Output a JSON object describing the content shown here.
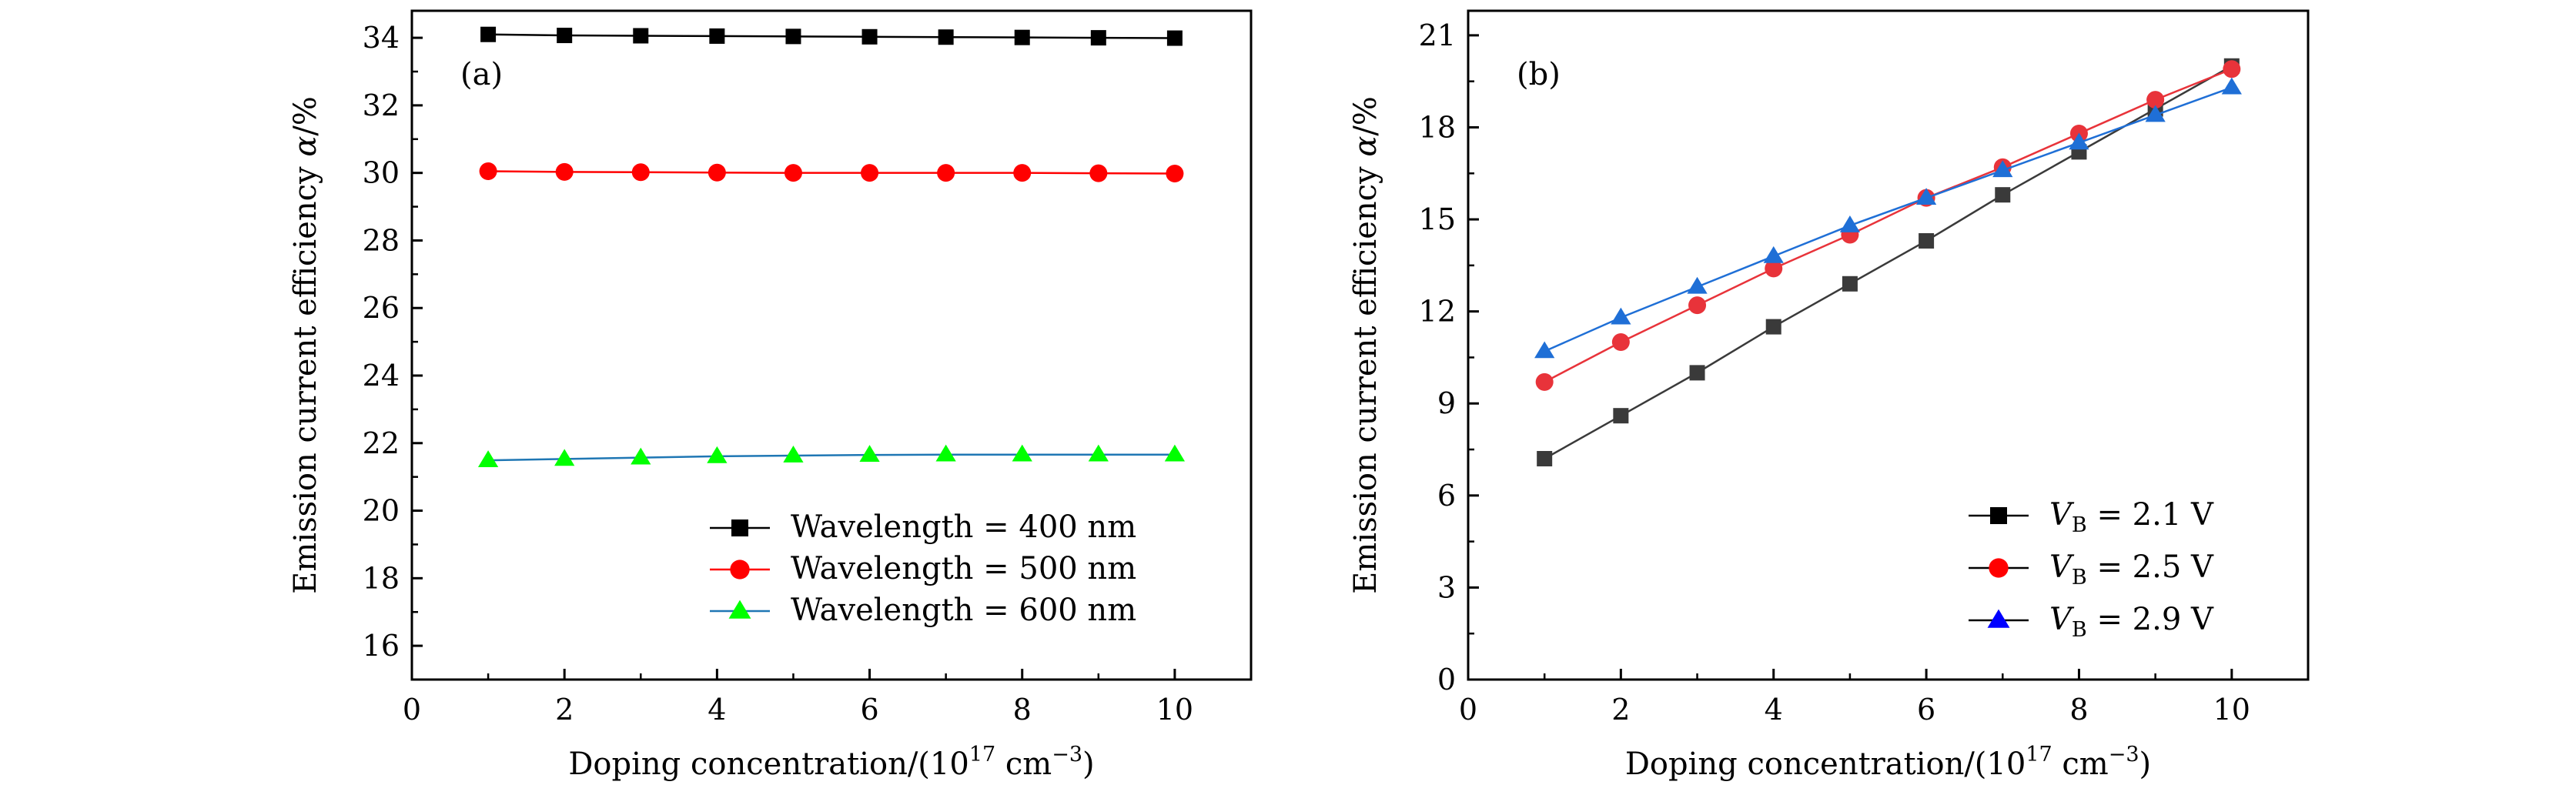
{
  "chart_data": [
    {
      "type": "line",
      "panel_label": "(a)",
      "xlabel": {
        "prefix": "Doping concentration/(10",
        "exp1": "17",
        "mid": " cm",
        "exp2": "−3",
        "suffix": ")"
      },
      "ylabel": {
        "prefix": "Emission current efficiency ",
        "var": "α",
        "suffix": "/%"
      },
      "xlim": [
        0,
        11
      ],
      "ylim": [
        15,
        34.8
      ],
      "xticks": [
        0,
        2,
        4,
        6,
        8,
        10
      ],
      "yticks": [
        16,
        18,
        20,
        22,
        24,
        26,
        28,
        30,
        32,
        34
      ],
      "x": [
        1,
        2,
        3,
        4,
        5,
        6,
        7,
        8,
        9,
        10
      ],
      "legend_position": "bottom-right",
      "series": [
        {
          "name": "Wavelength = 400 nm",
          "legend_parts": [
            "Wavelength",
            " = 400 nm"
          ],
          "color": "#000000",
          "line_color": "#000000",
          "marker": "square",
          "values": [
            34.1,
            34.07,
            34.06,
            34.05,
            34.04,
            34.03,
            34.02,
            34.01,
            34.0,
            33.99
          ]
        },
        {
          "name": "Wavelength = 500 nm",
          "legend_parts": [
            "Wavelength",
            " = 500 nm"
          ],
          "color": "#ff0000",
          "line_color": "#ff0000",
          "marker": "circle",
          "values": [
            30.05,
            30.03,
            30.02,
            30.01,
            30.0,
            30.0,
            30.0,
            30.0,
            29.99,
            29.98
          ]
        },
        {
          "name": "Wavelength = 600 nm",
          "legend_parts": [
            "Wavelength",
            " = 600 nm"
          ],
          "color": "#00ff00",
          "line_color": "#1f77b4",
          "marker": "triangle",
          "values": [
            21.49,
            21.53,
            21.57,
            21.61,
            21.63,
            21.65,
            21.66,
            21.66,
            21.66,
            21.66
          ]
        }
      ]
    },
    {
      "type": "line",
      "panel_label": "(b)",
      "xlabel": {
        "prefix": "Doping concentration/(10",
        "exp1": "17",
        "mid": " cm",
        "exp2": "−3",
        "suffix": ")"
      },
      "ylabel": {
        "prefix": "Emission current efficiency ",
        "var": "α",
        "suffix": "/%"
      },
      "xlim": [
        0,
        11
      ],
      "ylim": [
        0,
        21.8
      ],
      "xticks": [
        0,
        2,
        4,
        6,
        8,
        10
      ],
      "yticks": [
        0,
        3,
        6,
        9,
        12,
        15,
        18,
        21
      ],
      "x": [
        1,
        2,
        3,
        4,
        5,
        6,
        7,
        8,
        9,
        10
      ],
      "legend_position": "bottom-right",
      "series": [
        {
          "name": "VB = 2.1 V",
          "legend_parts": [
            "V",
            "B",
            " = 2.1 V"
          ],
          "color": "#000000",
          "line_color": "#3a3a3a",
          "marker_fill": "#3a3a3a",
          "marker": "square",
          "values": [
            7.2,
            8.6,
            10.0,
            11.5,
            12.9,
            14.3,
            15.8,
            17.2,
            18.6,
            20.0
          ]
        },
        {
          "name": "VB = 2.5 V",
          "legend_parts": [
            "V",
            "B",
            " = 2.5 V"
          ],
          "color": "#ff0000",
          "line_color": "#e8333a",
          "marker_fill": "#e8333a",
          "marker": "circle",
          "values": [
            9.7,
            11.0,
            12.2,
            13.4,
            14.5,
            15.7,
            16.7,
            17.8,
            18.9,
            19.9
          ]
        },
        {
          "name": "VB = 2.9 V",
          "legend_parts": [
            "V",
            "B",
            " = 2.9 V"
          ],
          "color": "#0000ff",
          "line_color": "#1f6fd6",
          "marker_fill": "#1f6fd6",
          "marker": "triangle",
          "values": [
            10.7,
            11.8,
            12.8,
            13.8,
            14.8,
            15.7,
            16.6,
            17.5,
            18.4,
            19.3
          ]
        }
      ]
    }
  ]
}
